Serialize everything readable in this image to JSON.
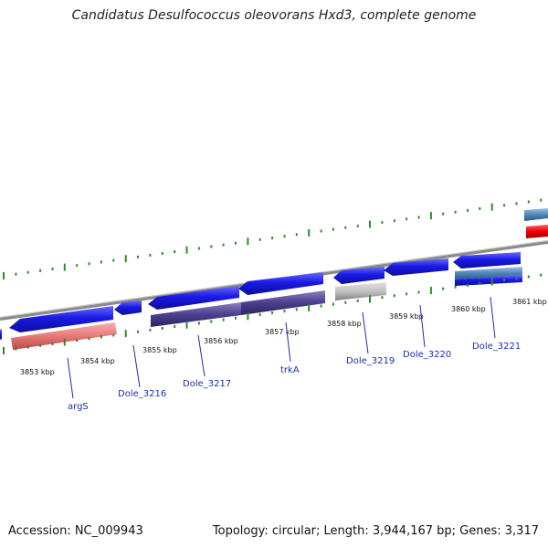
{
  "title": "Candidatus Desulfococcus oleovorans Hxd3, complete genome",
  "footer": {
    "accession": "Accession: NC_009943",
    "topology": "Topology: circular; Length: 3,944,167 bp; Genes: 3,317"
  },
  "tick_labels": [
    "3853 kbp",
    "3854 kbp",
    "3855 kbp",
    "3856 kbp",
    "3857 kbp",
    "3858 kbp",
    "3859 kbp",
    "3860 kbp",
    "3861 kbp"
  ],
  "gene_labels": [
    "argS",
    "Dole_3216",
    "Dole_3217",
    "trkA",
    "Dole_3219",
    "Dole_3220",
    "Dole_3221"
  ],
  "colors": {
    "cds": "#1a1ae6",
    "cds_purple": "#4b3f8e",
    "trna": "#e87878",
    "gray": "#bdbdbd",
    "steelblue": "#4f86b8",
    "red": "#ee0000",
    "axis": "#8a8a8a",
    "tick": "#2e8b2e",
    "label": "#1a2fb0"
  }
}
